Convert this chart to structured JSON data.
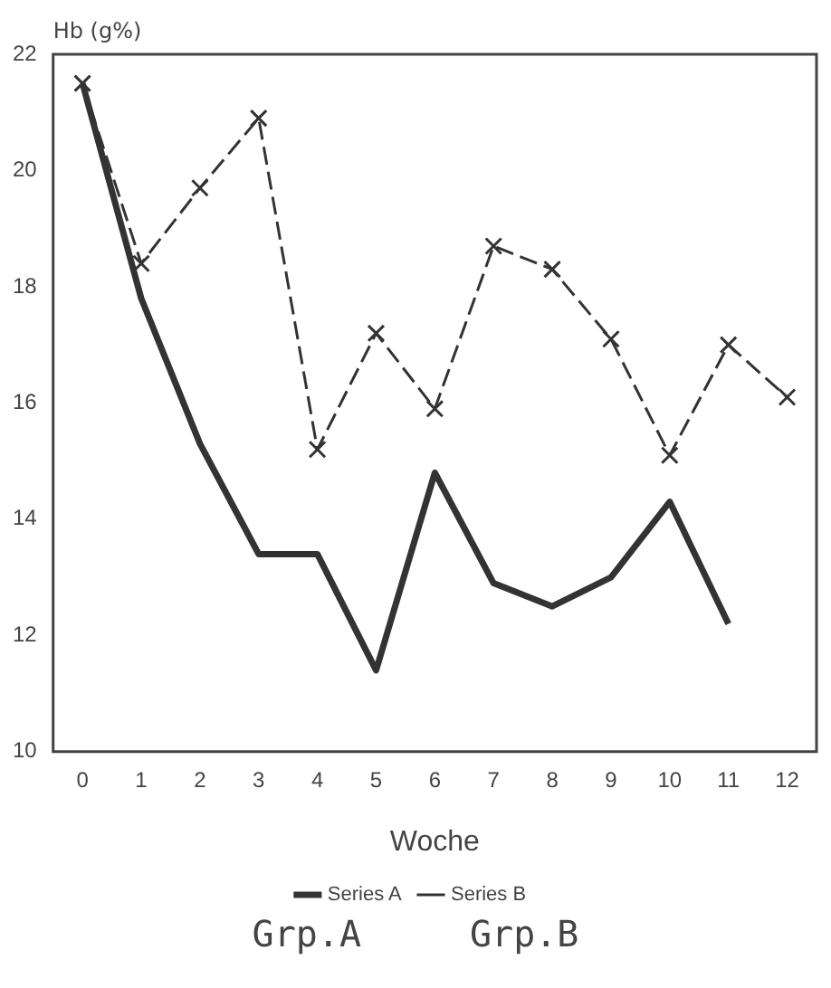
{
  "chart_data": {
    "type": "line",
    "ylabel": "Hb (g%)",
    "xlabel": "Woche",
    "x": [
      0,
      1,
      2,
      3,
      4,
      5,
      6,
      7,
      8,
      9,
      10,
      11,
      12
    ],
    "xlim": [
      -0.5,
      12.5
    ],
    "xticks": [
      0,
      1,
      2,
      3,
      4,
      5,
      6,
      7,
      8,
      9,
      10,
      11,
      12
    ],
    "ylim": [
      10,
      22
    ],
    "yticks": [
      10,
      12,
      14,
      16,
      18,
      20,
      22
    ],
    "series": [
      {
        "name": "Series A",
        "color": "#333333",
        "marker": "none",
        "line_style": "solid",
        "values": [
          21.5,
          17.8,
          15.3,
          13.4,
          13.4,
          11.4,
          14.8,
          12.9,
          12.5,
          13.0,
          14.3,
          12.2,
          null
        ]
      },
      {
        "name": "Series B",
        "color": "#333333",
        "marker": "cross",
        "line_style": "dashed",
        "values": [
          21.5,
          18.4,
          19.7,
          20.9,
          15.2,
          17.2,
          15.9,
          18.7,
          18.3,
          17.1,
          15.1,
          17.0,
          16.1
        ]
      }
    ],
    "grid": false,
    "legend": "bottom",
    "annotations": [
      "Grp.A",
      "Grp.B"
    ]
  }
}
